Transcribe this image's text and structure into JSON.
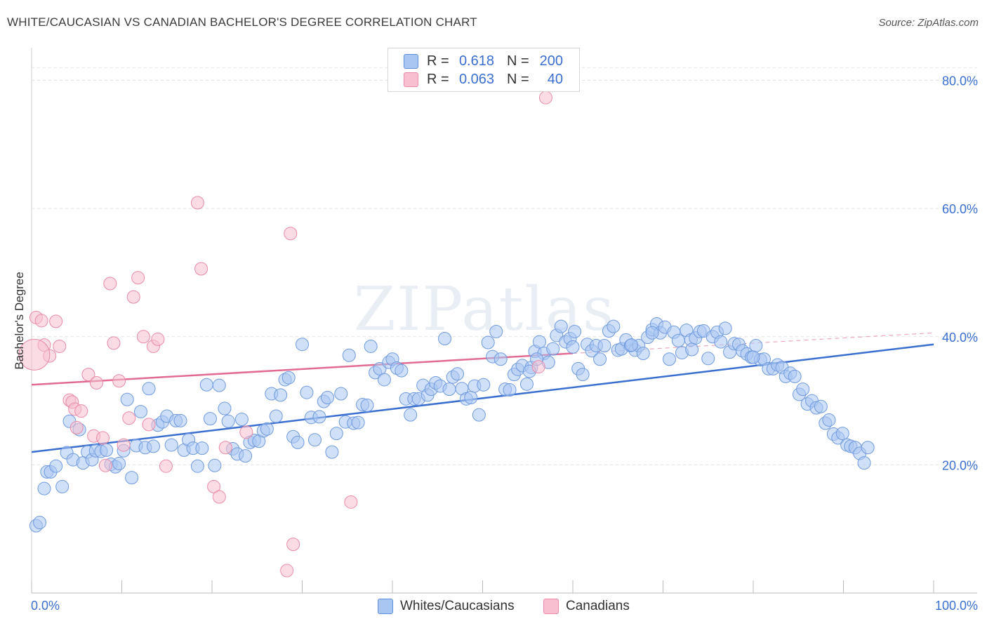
{
  "header": {
    "title": "WHITE/CAUCASIAN VS CANADIAN BACHELOR'S DEGREE CORRELATION CHART",
    "source": "Source: ZipAtlas.com"
  },
  "legend": {
    "rows": [
      {
        "r_label": "R =",
        "r_value": "0.618",
        "n_label": "N =",
        "n_value": "200",
        "color": "#a9c6f2",
        "border": "#5f8fd9"
      },
      {
        "r_label": "R =",
        "r_value": "0.063",
        "n_label": "N =",
        "n_value": "40",
        "color": "#f7bfd0",
        "border": "#e98aa6"
      }
    ]
  },
  "bottom_legend": [
    {
      "label": "Whites/Caucasians",
      "color": "#a9c6f2",
      "border": "#5f8fd9"
    },
    {
      "label": "Canadians",
      "color": "#f7bfd0",
      "border": "#e98aa6"
    }
  ],
  "watermark": "ZIPatlas",
  "chart_data": {
    "type": "scatter",
    "title": "WHITE/CAUCASIAN VS CANADIAN BACHELOR'S DEGREE CORRELATION CHART",
    "xlabel": "",
    "ylabel": "Bachelor's Degree",
    "xlim": [
      0,
      100
    ],
    "ylim": [
      0,
      84
    ],
    "x_tick_labels": [
      "0.0%",
      "100.0%"
    ],
    "y_ticks": [
      20,
      40,
      60,
      80
    ],
    "y_tick_labels": [
      "20.0%",
      "40.0%",
      "60.0%",
      "80.0%"
    ],
    "colors": {
      "blue": "#3a6fd0",
      "blue_fill": "#a9c6f2",
      "pink": "#e26b93",
      "pink_fill": "#f7bfd0",
      "axis_label": "#3a6fd0"
    },
    "series": [
      {
        "name": "Whites/Caucasians",
        "color": "#3a6fd0",
        "trend": {
          "x": [
            0,
            100
          ],
          "y": [
            22.0,
            38.8
          ]
        },
        "points": [
          [
            0.5,
            10.5
          ],
          [
            0.9,
            11.0
          ],
          [
            1.4,
            16.3
          ],
          [
            1.7,
            18.9
          ],
          [
            2.1,
            18.9
          ],
          [
            2.7,
            19.8
          ],
          [
            3.4,
            16.6
          ],
          [
            3.9,
            21.9
          ],
          [
            4.2,
            26.8
          ],
          [
            4.6,
            20.8
          ],
          [
            5.3,
            25.5
          ],
          [
            5.7,
            20.3
          ],
          [
            6.2,
            22.0
          ],
          [
            6.7,
            20.8
          ],
          [
            7.1,
            22.2
          ],
          [
            7.7,
            22.1
          ],
          [
            8.3,
            22.3
          ],
          [
            8.8,
            20.1
          ],
          [
            9.3,
            19.7
          ],
          [
            9.7,
            20.2
          ],
          [
            10.2,
            22.2
          ],
          [
            10.6,
            30.2
          ],
          [
            11.1,
            18.0
          ],
          [
            11.6,
            23.0
          ],
          [
            12.1,
            28.3
          ],
          [
            12.6,
            22.7
          ],
          [
            13.0,
            31.9
          ],
          [
            13.5,
            22.9
          ],
          [
            14.0,
            26.2
          ],
          [
            14.5,
            26.7
          ],
          [
            15.0,
            27.6
          ],
          [
            15.5,
            23.1
          ],
          [
            16.0,
            26.9
          ],
          [
            16.5,
            26.9
          ],
          [
            16.9,
            22.3
          ],
          [
            17.4,
            23.9
          ],
          [
            17.9,
            22.6
          ],
          [
            18.4,
            19.8
          ],
          [
            18.9,
            22.6
          ],
          [
            19.4,
            32.5
          ],
          [
            19.8,
            27.2
          ],
          [
            20.3,
            19.9
          ],
          [
            20.8,
            32.4
          ],
          [
            21.4,
            28.8
          ],
          [
            21.8,
            26.8
          ],
          [
            22.3,
            22.5
          ],
          [
            22.8,
            21.7
          ],
          [
            23.3,
            27.1
          ],
          [
            23.7,
            21.4
          ],
          [
            24.2,
            23.5
          ],
          [
            24.7,
            23.8
          ],
          [
            25.2,
            23.7
          ],
          [
            25.7,
            25.3
          ],
          [
            26.1,
            25.6
          ],
          [
            26.6,
            31.1
          ],
          [
            27.1,
            27.6
          ],
          [
            27.6,
            30.9
          ],
          [
            28.1,
            33.3
          ],
          [
            28.5,
            33.6
          ],
          [
            29.0,
            24.4
          ],
          [
            29.5,
            23.5
          ],
          [
            30.0,
            38.8
          ],
          [
            30.5,
            31.3
          ],
          [
            31.0,
            27.4
          ],
          [
            31.4,
            23.9
          ],
          [
            31.9,
            27.5
          ],
          [
            32.4,
            29.9
          ],
          [
            32.8,
            30.5
          ],
          [
            33.3,
            22.0
          ],
          [
            33.8,
            24.9
          ],
          [
            34.3,
            31.1
          ],
          [
            34.8,
            26.7
          ],
          [
            35.2,
            37.1
          ],
          [
            35.7,
            26.5
          ],
          [
            36.2,
            26.6
          ],
          [
            36.7,
            29.4
          ],
          [
            37.2,
            29.3
          ],
          [
            37.6,
            38.5
          ],
          [
            38.1,
            34.4
          ],
          [
            38.6,
            35.0
          ],
          [
            39.1,
            33.3
          ],
          [
            39.6,
            36.0
          ],
          [
            40.0,
            36.5
          ],
          [
            40.5,
            35.1
          ],
          [
            41.0,
            34.7
          ],
          [
            41.5,
            30.3
          ],
          [
            42.0,
            27.8
          ],
          [
            42.4,
            30.3
          ],
          [
            42.9,
            30.3
          ],
          [
            43.4,
            32.4
          ],
          [
            43.9,
            30.9
          ],
          [
            44.3,
            31.8
          ],
          [
            44.8,
            32.8
          ],
          [
            45.3,
            32.3
          ],
          [
            45.8,
            39.7
          ],
          [
            46.3,
            31.8
          ],
          [
            46.7,
            33.7
          ],
          [
            47.2,
            34.2
          ],
          [
            47.7,
            31.9
          ],
          [
            48.2,
            30.3
          ],
          [
            48.7,
            30.5
          ],
          [
            49.1,
            32.3
          ],
          [
            49.6,
            27.8
          ],
          [
            50.1,
            32.5
          ],
          [
            50.6,
            39.1
          ],
          [
            51.1,
            36.9
          ],
          [
            51.5,
            40.8
          ],
          [
            52.0,
            36.5
          ],
          [
            52.5,
            31.8
          ],
          [
            53.0,
            31.7
          ],
          [
            53.5,
            34.1
          ],
          [
            53.9,
            34.9
          ],
          [
            54.4,
            35.5
          ],
          [
            54.9,
            32.6
          ],
          [
            55.4,
            35.2
          ],
          [
            55.8,
            37.7
          ],
          [
            56.3,
            39.2
          ],
          [
            56.8,
            37.4
          ],
          [
            57.3,
            36.0
          ],
          [
            57.8,
            38.1
          ],
          [
            58.2,
            40.2
          ],
          [
            58.7,
            41.6
          ],
          [
            59.2,
            39.2
          ],
          [
            59.7,
            39.7
          ],
          [
            60.2,
            40.8
          ],
          [
            60.6,
            35.0
          ],
          [
            61.1,
            34.1
          ],
          [
            61.6,
            38.8
          ],
          [
            62.1,
            37.8
          ],
          [
            62.6,
            38.6
          ],
          [
            63.0,
            36.5
          ],
          [
            63.5,
            38.6
          ],
          [
            64.0,
            40.9
          ],
          [
            64.5,
            41.6
          ],
          [
            65.0,
            37.9
          ],
          [
            65.4,
            38.1
          ],
          [
            65.9,
            39.5
          ],
          [
            66.4,
            38.6
          ],
          [
            66.9,
            37.9
          ],
          [
            67.3,
            38.6
          ],
          [
            67.8,
            37.4
          ],
          [
            68.3,
            39.9
          ],
          [
            68.8,
            41.1
          ],
          [
            69.3,
            42.0
          ],
          [
            69.7,
            40.6
          ],
          [
            70.2,
            41.5
          ],
          [
            70.7,
            36.5
          ],
          [
            71.2,
            40.7
          ],
          [
            71.7,
            39.4
          ],
          [
            72.1,
            37.5
          ],
          [
            72.6,
            41.0
          ],
          [
            73.1,
            39.5
          ],
          [
            73.6,
            39.8
          ],
          [
            74.1,
            40.8
          ],
          [
            74.5,
            40.9
          ],
          [
            75.0,
            36.6
          ],
          [
            75.5,
            40.0
          ],
          [
            76.0,
            40.7
          ],
          [
            76.4,
            39.2
          ],
          [
            76.9,
            41.3
          ],
          [
            77.4,
            37.6
          ],
          [
            77.9,
            38.9
          ],
          [
            78.4,
            38.8
          ],
          [
            78.8,
            37.8
          ],
          [
            79.3,
            37.3
          ],
          [
            79.8,
            36.8
          ],
          [
            80.3,
            38.6
          ],
          [
            80.8,
            36.4
          ],
          [
            81.2,
            36.5
          ],
          [
            81.7,
            35.0
          ],
          [
            82.2,
            35.0
          ],
          [
            82.7,
            35.6
          ],
          [
            83.2,
            35.2
          ],
          [
            83.6,
            33.8
          ],
          [
            84.1,
            34.3
          ],
          [
            84.6,
            33.8
          ],
          [
            85.1,
            31.0
          ],
          [
            85.5,
            31.8
          ],
          [
            86.0,
            29.5
          ],
          [
            86.5,
            30.0
          ],
          [
            87.0,
            28.9
          ],
          [
            87.5,
            29.1
          ],
          [
            88.0,
            26.5
          ],
          [
            88.4,
            27.0
          ],
          [
            88.9,
            24.8
          ],
          [
            89.4,
            24.2
          ],
          [
            89.9,
            24.9
          ],
          [
            90.4,
            23.1
          ],
          [
            90.8,
            22.9
          ],
          [
            91.3,
            22.7
          ],
          [
            91.8,
            21.8
          ],
          [
            92.3,
            20.3
          ],
          [
            92.7,
            22.7
          ],
          [
            55.2,
            34.6
          ],
          [
            56.0,
            36.5
          ],
          [
            60.0,
            38.4
          ],
          [
            66.5,
            38.7
          ],
          [
            80.0,
            36.8
          ],
          [
            68.8,
            40.6
          ],
          [
            73.2,
            38.0
          ]
        ]
      },
      {
        "name": "Canadians",
        "color": "#e26b93",
        "trend": {
          "x": [
            0,
            60
          ],
          "y": [
            32.5,
            37.4
          ]
        },
        "trend_dashed": {
          "x": [
            60,
            100
          ],
          "y": [
            37.4,
            40.6
          ]
        },
        "points": [
          [
            0.5,
            43.0
          ],
          [
            1.1,
            42.5
          ],
          [
            1.4,
            38.7
          ],
          [
            2.0,
            37.0
          ],
          [
            2.7,
            42.4
          ],
          [
            3.1,
            38.5
          ],
          [
            4.2,
            30.1
          ],
          [
            4.5,
            29.8
          ],
          [
            4.8,
            28.7
          ],
          [
            5.0,
            25.8
          ],
          [
            5.5,
            28.4
          ],
          [
            6.3,
            34.1
          ],
          [
            6.9,
            24.5
          ],
          [
            7.2,
            32.8
          ],
          [
            7.9,
            24.2
          ],
          [
            8.2,
            19.9
          ],
          [
            8.7,
            48.3
          ],
          [
            9.1,
            39.0
          ],
          [
            9.7,
            33.1
          ],
          [
            10.2,
            23.1
          ],
          [
            10.8,
            27.3
          ],
          [
            11.3,
            46.2
          ],
          [
            11.8,
            49.2
          ],
          [
            12.4,
            40.0
          ],
          [
            13.0,
            26.3
          ],
          [
            13.5,
            38.5
          ],
          [
            14.0,
            39.6
          ],
          [
            14.9,
            19.8
          ],
          [
            18.4,
            60.9
          ],
          [
            18.8,
            50.6
          ],
          [
            20.2,
            16.6
          ],
          [
            20.8,
            15.0
          ],
          [
            21.5,
            22.7
          ],
          [
            23.8,
            25.1
          ],
          [
            28.7,
            56.1
          ],
          [
            29.0,
            7.6
          ],
          [
            28.3,
            3.5
          ],
          [
            35.4,
            14.2
          ],
          [
            56.2,
            35.3
          ],
          [
            57.0,
            77.3
          ]
        ]
      }
    ]
  }
}
